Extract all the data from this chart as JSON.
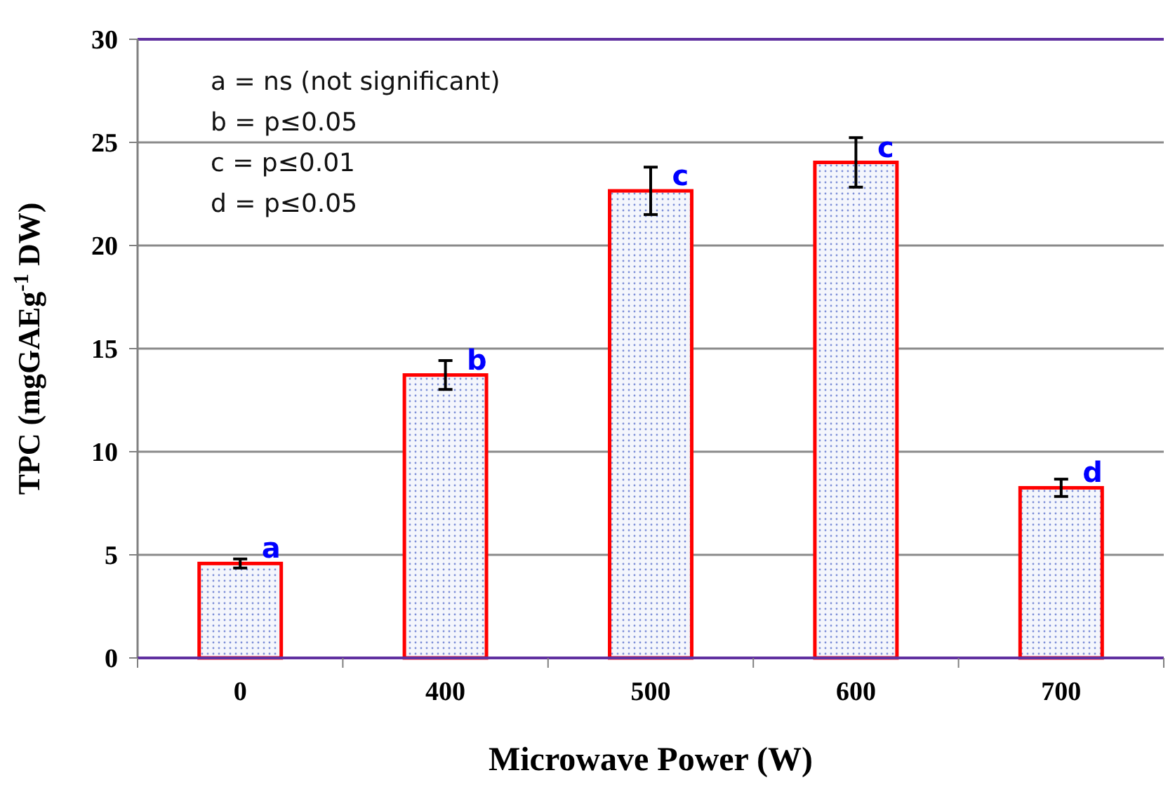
{
  "chart_data": {
    "type": "bar",
    "xlabel": "Microwave Power (W)",
    "ylabel": "TPC (mgGAEg$^{-1}$ DW)",
    "categories": [
      "0",
      "400",
      "500",
      "600",
      "700"
    ],
    "values": [
      4.58,
      13.72,
      22.65,
      24.03,
      8.25
    ],
    "errors": [
      0.22,
      0.7,
      1.15,
      1.2,
      0.42
    ],
    "color": "#ff0000",
    "ylim": [
      0,
      30
    ],
    "yticks": [
      0,
      5,
      10,
      15,
      20,
      25,
      30
    ],
    "grid": "y",
    "annotations": [
      {
        "text": "a",
        "x": "0",
        "y": 4.58
      },
      {
        "text": "b",
        "x": "400",
        "y": 13.72
      },
      {
        "text": "c",
        "x": "500",
        "y": 22.65
      },
      {
        "text": "c",
        "x": "600",
        "y": 24.03
      },
      {
        "text": "d",
        "x": "700",
        "y": 8.25
      },
      "a = ns (not significant)",
      "b = p≤0.05",
      "c = p≤0.01",
      "d = p≤0.05"
    ]
  }
}
